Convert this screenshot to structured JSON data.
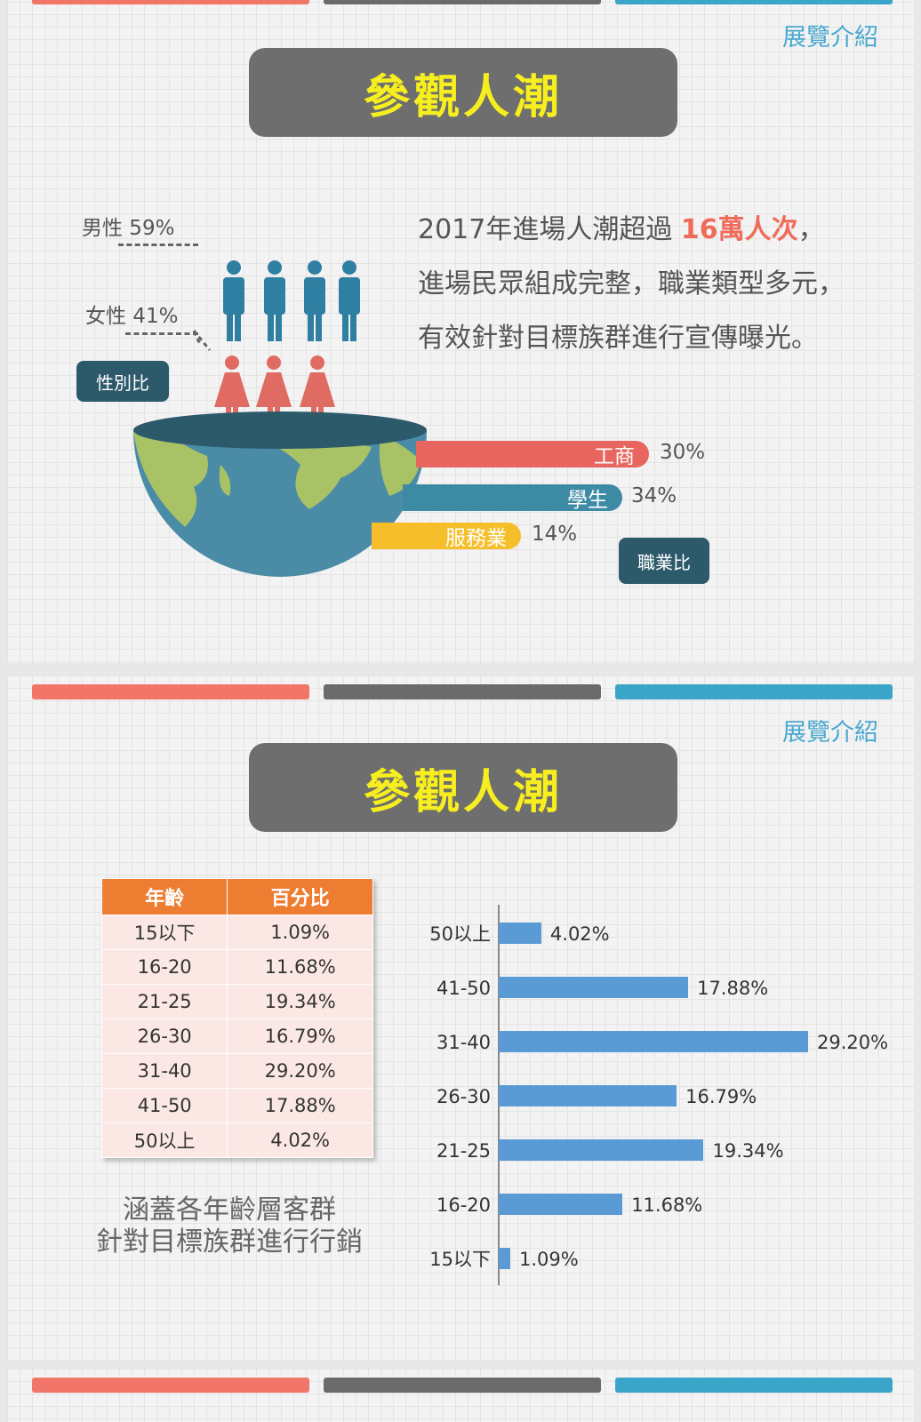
{
  "colors": {
    "red": "#f2756a",
    "gray": "#6b6b6b",
    "blue": "#3ba5c9",
    "title_text": "#f6ee1e",
    "dark_teal": "#2c5a6b",
    "male": "#2e7fa1",
    "female": "#e06b63",
    "orange": "#ed7d31",
    "bar": "#5b9bd5"
  },
  "slide1": {
    "topic": "展覽介紹",
    "title": "參觀人潮",
    "male_label": "男性 59%",
    "female_label": "女性 41%",
    "gender_tag": "性別比",
    "description": [
      {
        "before": "2017年進場人潮超過 ",
        "highlight": "16萬人次",
        "after": "，"
      },
      {
        "before": "進場民眾組成完整，職業類型多元，",
        "highlight": "",
        "after": ""
      },
      {
        "before": "有效針對目標族群進行宣傳曝光。",
        "highlight": "",
        "after": ""
      }
    ],
    "occupations": [
      {
        "label": "工商",
        "pct": "30%",
        "color": "#e8665f"
      },
      {
        "label": "學生",
        "pct": "34%",
        "color": "#3d8aa4"
      },
      {
        "label": "服務業",
        "pct": "14%",
        "color": "#f5be2a"
      }
    ],
    "occupation_tag": "職業比"
  },
  "slide2": {
    "topic": "展覽介紹",
    "title": "參觀人潮",
    "table": {
      "headers": [
        "年齡",
        "百分比"
      ],
      "rows": [
        [
          "15以下",
          "1.09%"
        ],
        [
          "16-20",
          "11.68%"
        ],
        [
          "21-25",
          "19.34%"
        ],
        [
          "26-30",
          "16.79%"
        ],
        [
          "31-40",
          "29.20%"
        ],
        [
          "41-50",
          "17.88%"
        ],
        [
          "50以上",
          "4.02%"
        ]
      ]
    },
    "slogan": [
      "涵蓋各年齡層客群",
      "針對目標族群進行行銷"
    ]
  },
  "chart_data": {
    "type": "bar",
    "orientation": "horizontal",
    "categories": [
      "50以上",
      "41-50",
      "31-40",
      "26-30",
      "21-25",
      "16-20",
      "15以下"
    ],
    "values": [
      4.02,
      17.88,
      29.2,
      16.79,
      19.34,
      11.68,
      1.09
    ],
    "value_labels": [
      "4.02%",
      "17.88%",
      "29.20%",
      "16.79%",
      "19.34%",
      "11.68%",
      "1.09%"
    ],
    "grid": false,
    "legend": "none"
  }
}
